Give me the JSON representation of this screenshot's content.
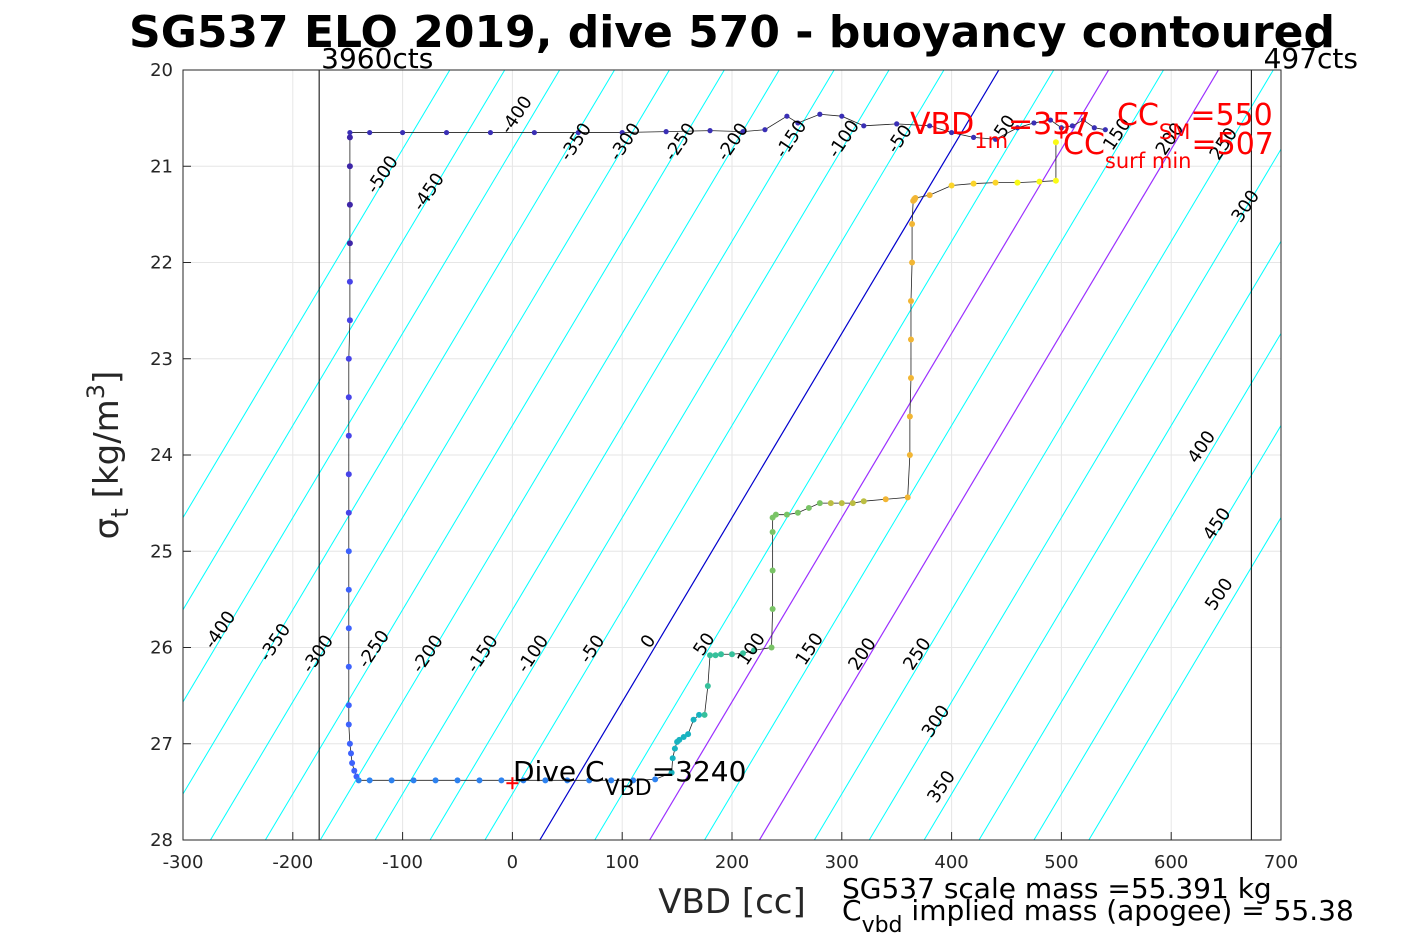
{
  "chart_data": {
    "type": "scatter",
    "title": "SG537 ELO 2019, dive 570 - buoyancy contoured",
    "xlabel": "VBD [cc]",
    "ylabel_main": "σ",
    "ylabel_sub": "t",
    "ylabel_unit": "[kg/m",
    "ylabel_sup": "3",
    "ylabel_close": "]",
    "xlim": [
      -300,
      700
    ],
    "ylim": [
      20,
      28
    ],
    "y_reversed": true,
    "grid": true,
    "xticks": [
      "-300",
      "-200",
      "-100",
      "0",
      "100",
      "200",
      "300",
      "400",
      "500",
      "600",
      "700"
    ],
    "yticks": [
      "20",
      "21",
      "22",
      "23",
      "24",
      "25",
      "26",
      "27",
      "28"
    ],
    "vlines": [
      {
        "x": -176,
        "label": "3960cts",
        "color": "#000000"
      },
      {
        "x": 673,
        "label": "497cts",
        "color": "#000000"
      }
    ],
    "contour_levels": [
      -500,
      -450,
      -400,
      -350,
      -300,
      -250,
      -200,
      -150,
      -100,
      -50,
      0,
      50,
      100,
      150,
      200,
      250,
      300,
      350,
      400,
      450,
      500
    ],
    "contour_color": "#00ffff",
    "neutral_line": {
      "x_at_28": 25,
      "x_at_20": 443,
      "color": "#0000cd"
    },
    "purple_lines": [
      {
        "x_at_28": 125,
        "x_at_20": 543,
        "color": "#9b30ff"
      },
      {
        "x_at_28": 225,
        "x_at_20": 643,
        "color": "#9b30ff"
      }
    ],
    "contour_labels": [
      {
        "text": "-400",
        "x": 8,
        "y": 20.5
      },
      {
        "text": "-350",
        "x": 62,
        "y": 20.78
      },
      {
        "text": "-300",
        "x": 107,
        "y": 20.78
      },
      {
        "text": "-250",
        "x": 157,
        "y": 20.78
      },
      {
        "text": "-200",
        "x": 205,
        "y": 20.78
      },
      {
        "text": "-150",
        "x": 258,
        "y": 20.75
      },
      {
        "text": "-100",
        "x": 306,
        "y": 20.75
      },
      {
        "text": "-50",
        "x": 357,
        "y": 20.75
      },
      {
        "text": "50",
        "x": 453,
        "y": 20.62
      },
      {
        "text": "150",
        "x": 555,
        "y": 20.7
      },
      {
        "text": "200",
        "x": 603,
        "y": 20.75
      },
      {
        "text": "250",
        "x": 652,
        "y": 20.8
      },
      {
        "text": "-500",
        "x": -114,
        "y": 21.12
      },
      {
        "text": "-450",
        "x": -72,
        "y": 21.3
      },
      {
        "text": "300",
        "x": 672,
        "y": 21.45
      },
      {
        "text": "400",
        "x": 632,
        "y": 23.95
      },
      {
        "text": "450",
        "x": 646,
        "y": 24.75
      },
      {
        "text": "500",
        "x": 648,
        "y": 25.48
      },
      {
        "text": "-400",
        "x": -262,
        "y": 25.85
      },
      {
        "text": "-350",
        "x": -212,
        "y": 25.98
      },
      {
        "text": "-300",
        "x": -173,
        "y": 26.1
      },
      {
        "text": "-250",
        "x": -122,
        "y": 26.05
      },
      {
        "text": "-200",
        "x": -73,
        "y": 26.1
      },
      {
        "text": "-150",
        "x": -23,
        "y": 26.1
      },
      {
        "text": "-100",
        "x": 23,
        "y": 26.1
      },
      {
        "text": "-50",
        "x": 77,
        "y": 26.05
      },
      {
        "text": "0",
        "x": 128,
        "y": 25.97
      },
      {
        "text": "50",
        "x": 179,
        "y": 26.0
      },
      {
        "text": "100",
        "x": 222,
        "y": 26.05
      },
      {
        "text": "150",
        "x": 275,
        "y": 26.05
      },
      {
        "text": "200",
        "x": 323,
        "y": 26.1
      },
      {
        "text": "250",
        "x": 373,
        "y": 26.1
      },
      {
        "text": "300",
        "x": 390,
        "y": 26.8
      },
      {
        "text": "350",
        "x": 395,
        "y": 27.48
      }
    ],
    "descent": {
      "name": "descent",
      "x": [
        -148,
        -148,
        -148,
        -148,
        -148,
        -148,
        -149,
        -149,
        -149,
        -149,
        -149,
        -149,
        -149,
        -149,
        -149,
        -149,
        -149,
        -148,
        -147,
        -146,
        -144,
        -142,
        -140,
        -130,
        -110,
        -90,
        -70,
        -50,
        -30,
        -10,
        10,
        30,
        50,
        70,
        90,
        110,
        130,
        145,
        146,
        148,
        150,
        152,
        156,
        160,
        165,
        170,
        175,
        178,
        180,
        185,
        190,
        200,
        210,
        220,
        236,
        237,
        237,
        237,
        237,
        240,
        250,
        260,
        270,
        280,
        290,
        300,
        310,
        320,
        340,
        360,
        362,
        362,
        363,
        363,
        363,
        364,
        364,
        365,
        366,
        366,
        367,
        380,
        400,
        420,
        440,
        460,
        480,
        495,
        495
      ],
      "y": [
        20.7,
        21.0,
        21.4,
        21.8,
        22.2,
        22.6,
        23.0,
        23.4,
        23.8,
        24.2,
        24.6,
        25.0,
        25.4,
        25.8,
        26.2,
        26.6,
        26.8,
        27.0,
        27.1,
        27.2,
        27.28,
        27.34,
        27.38,
        27.38,
        27.38,
        27.38,
        27.38,
        27.38,
        27.38,
        27.38,
        27.38,
        27.38,
        27.38,
        27.38,
        27.38,
        27.38,
        27.37,
        27.3,
        27.15,
        27.05,
        26.98,
        26.96,
        26.93,
        26.9,
        26.75,
        26.7,
        26.7,
        26.4,
        26.08,
        26.08,
        26.07,
        26.07,
        26.06,
        26.03,
        26.0,
        25.6,
        25.2,
        24.8,
        24.65,
        24.62,
        24.62,
        24.6,
        24.55,
        24.5,
        24.5,
        24.5,
        24.5,
        24.48,
        24.46,
        24.44,
        24.0,
        23.6,
        23.2,
        22.8,
        22.4,
        22.0,
        21.6,
        21.36,
        21.35,
        21.34,
        21.33,
        21.3,
        21.2,
        21.18,
        21.17,
        21.17,
        21.16,
        21.15,
        20.75
      ]
    },
    "climb": {
      "name": "climb",
      "x": [
        -148,
        -130,
        -100,
        -60,
        -20,
        20,
        60,
        100,
        140,
        180,
        210,
        230,
        250,
        260,
        280,
        300,
        320,
        350,
        380,
        400,
        420,
        440,
        460,
        475,
        490,
        500,
        510,
        520,
        530,
        540
      ],
      "y": [
        20.65,
        20.65,
        20.65,
        20.65,
        20.65,
        20.65,
        20.65,
        20.65,
        20.64,
        20.63,
        20.64,
        20.62,
        20.48,
        20.55,
        20.46,
        20.48,
        20.58,
        20.56,
        20.58,
        20.65,
        20.7,
        20.72,
        20.6,
        20.55,
        20.52,
        20.6,
        20.58,
        20.52,
        20.6,
        20.62
      ]
    },
    "dive_marker": {
      "x": 0,
      "y": 27.41
    },
    "vbd1m_marker": {
      "x": 500,
      "y": 20.65
    },
    "annotations": {
      "dive_cvbd_pre": "Dive C",
      "dive_cvbd_sub": "VBD",
      "dive_cvbd_post": "=3240",
      "vbd1m_pre": "VBD",
      "vbd1m_sub": "1m",
      "vbd1m_post": "=357",
      "ccsm_pre": "CC",
      "ccsm_sub": "SM",
      "ccsm_post": "=550",
      "ccsurf_pre": "CC",
      "ccsurf_sub": "surf min",
      "ccsurf_post": "=507",
      "scale_mass": "SG537 scale mass =55.391 kg",
      "implied_pre": "C",
      "implied_sub": "vbd",
      "implied_post": " implied mass (apogee) = 55.38"
    }
  }
}
